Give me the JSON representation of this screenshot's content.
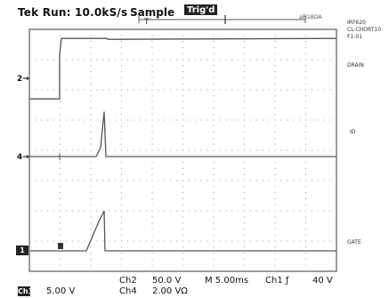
{
  "header": {
    "status": "Tek Run: 10.0kS/s",
    "mode": "Sample",
    "trig_badge": "Trig'd",
    "top_right_tag": "aPl1BDA"
  },
  "right_labels": {
    "device": [
      "IRF620",
      "CL-CHORT10",
      "F1-01"
    ],
    "drain": "DRAIN",
    "id": "ID",
    "gate": "GATE"
  },
  "markers": {
    "ch2": "2",
    "ch4": "4",
    "ch1": "1",
    "trigger": "T"
  },
  "readouts": {
    "ch1_badge": "Ch1",
    "ch1_scale": "5.00 V",
    "ch2_label": "Ch2",
    "ch2_scale": "50.0 V",
    "ch4_label": "Ch4",
    "ch4_scale": "2.00 VΩ",
    "timebase": "M 5.00ms",
    "trigger_source": "Ch1 ƒ",
    "trigger_level": "40 V"
  },
  "colors": {
    "trace": "#555555",
    "grid": "#9a9a9a",
    "frame": "#3a3a3a"
  },
  "traces": {
    "ch2_level_low_div": 0.3,
    "ch2_level_high_div": 7.7,
    "ch4_spike_peak_div": 1.65,
    "ch1_ramp_peak_div": 1.2
  }
}
